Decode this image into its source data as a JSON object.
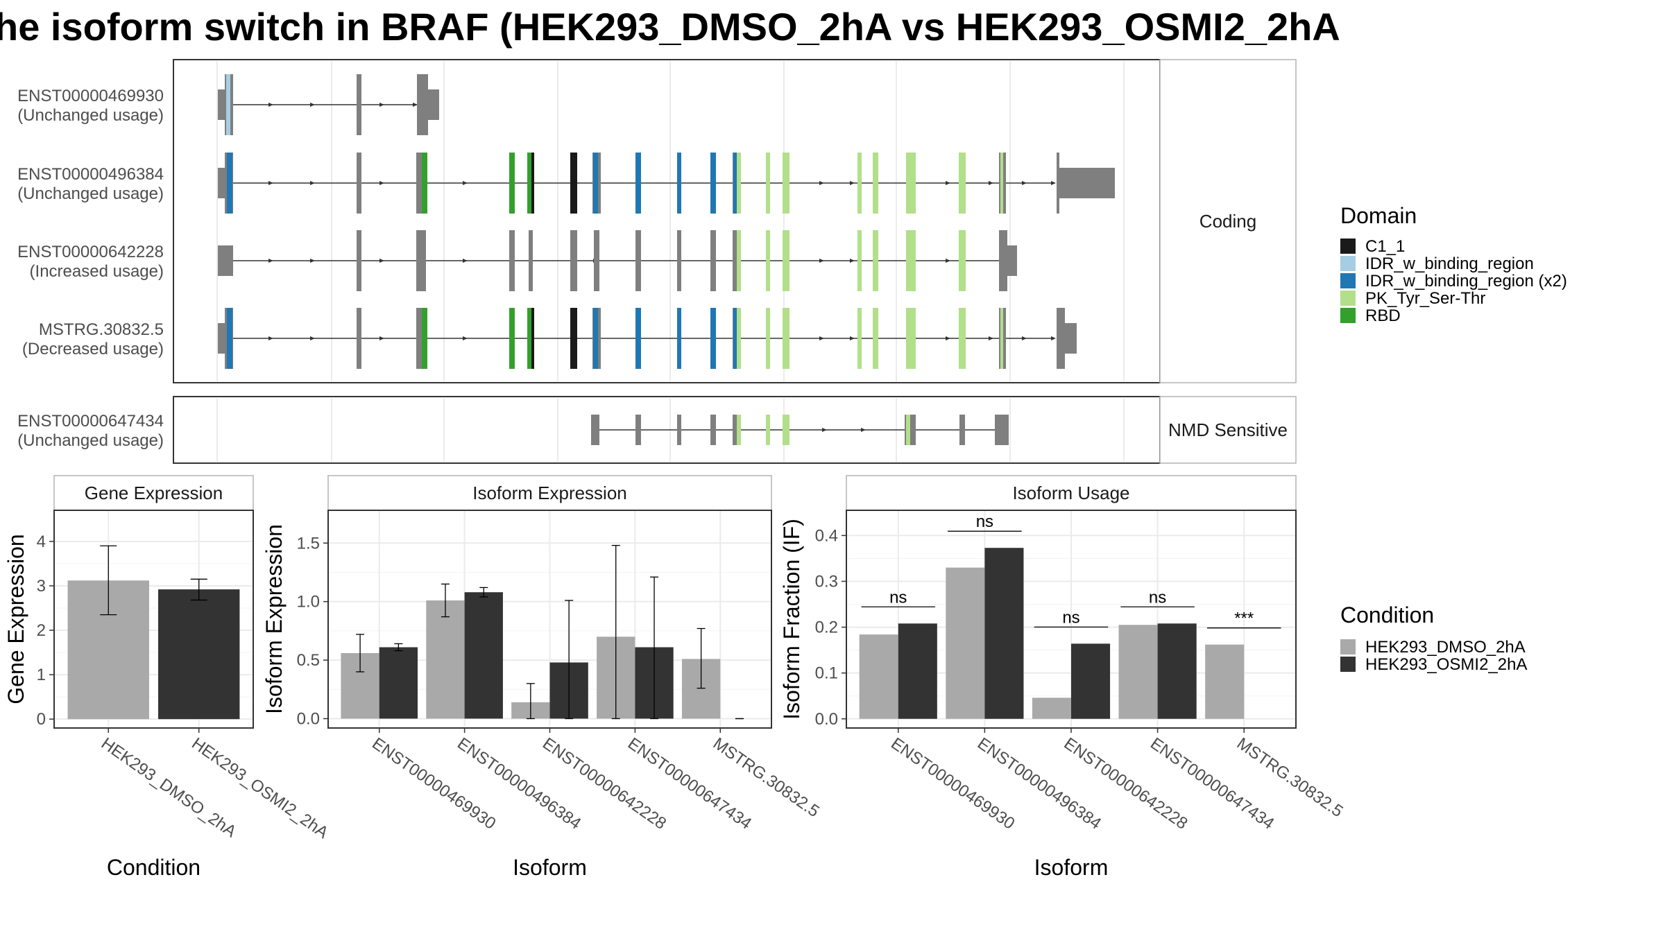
{
  "title": "he isoform switch in BRAF (HEK293_DMSO_2hA vs HEK293_OSMI2_2hA",
  "colors": {
    "C1_1": "#1a1a1a",
    "IDR_w_binding_region": "#a6cee3",
    "IDR_w_binding_region (x2)": "#1f78b4",
    "PK_Tyr_Ser-Thr": "#b2df8a",
    "RBD": "#33a02c",
    "exon": "#7f7f7f",
    "DMSO": "#a9a9a9",
    "OSMI2": "#333333"
  },
  "structure": {
    "facets": [
      "Coding",
      "NMD Sensitive"
    ],
    "transcripts": [
      {
        "id": "ENST00000469930",
        "label": "ENST00000469930",
        "usage": "(Unchanged usage)",
        "facet": "Coding"
      },
      {
        "id": "ENST00000496384",
        "label": "ENST00000496384",
        "usage": "(Unchanged usage)",
        "facet": "Coding"
      },
      {
        "id": "ENST00000642228",
        "label": "ENST00000642228",
        "usage": "(Increased usage)",
        "facet": "Coding"
      },
      {
        "id": "MSTRG.30832.5",
        "label": "MSTRG.30832.5",
        "usage": "(Decreased usage)",
        "facet": "Coding"
      },
      {
        "id": "ENST00000647434",
        "label": "ENST00000647434",
        "usage": "(Unchanged usage)",
        "facet": "NMD Sensitive"
      }
    ]
  },
  "legends": {
    "domain": {
      "title": "Domain",
      "items": [
        "C1_1",
        "IDR_w_binding_region",
        "IDR_w_binding_region (x2)",
        "PK_Tyr_Ser-Thr",
        "RBD"
      ]
    },
    "condition": {
      "title": "Condition",
      "items": [
        "HEK293_DMSO_2hA",
        "HEK293_OSMI2_2hA"
      ]
    }
  },
  "chart_data": [
    {
      "type": "bar",
      "title": "Gene Expression",
      "xlabel": "Condition",
      "ylabel": "Gene Expression",
      "categories": [
        "HEK293_DMSO_2hA",
        "HEK293_OSMI2_2hA"
      ],
      "values": [
        3.12,
        2.92
      ],
      "error_low": [
        2.35,
        2.68
      ],
      "error_high": [
        3.9,
        3.15
      ],
      "yticks": [
        "0",
        "1",
        "2",
        "3",
        "4"
      ],
      "ylim": [
        -0.2,
        4.7
      ],
      "grid": true
    },
    {
      "type": "bar",
      "title": "Isoform Expression",
      "xlabel": "Isoform",
      "ylabel": "Isoform Expression",
      "categories": [
        "ENST00000469930",
        "ENST00000496384",
        "ENST00000642228",
        "ENST00000647434",
        "MSTRG.30832.5"
      ],
      "series": [
        {
          "name": "HEK293_DMSO_2hA",
          "values": [
            0.56,
            1.01,
            0.14,
            0.7,
            0.51
          ],
          "error_low": [
            0.4,
            0.87,
            0.0,
            0.0,
            0.26
          ],
          "error_high": [
            0.72,
            1.15,
            0.3,
            1.48,
            0.77
          ]
        },
        {
          "name": "HEK293_OSMI2_2hA",
          "values": [
            0.61,
            1.08,
            0.48,
            0.61,
            0.0
          ],
          "error_low": [
            0.58,
            1.04,
            0.0,
            0.0,
            0.0
          ],
          "error_high": [
            0.64,
            1.12,
            1.01,
            1.21,
            0.0
          ]
        }
      ],
      "yticks": [
        "0.0",
        "0.5",
        "1.0",
        "1.5"
      ],
      "ylim": [
        -0.08,
        1.78
      ],
      "grid": true
    },
    {
      "type": "bar",
      "title": "Isoform Usage",
      "xlabel": "Isoform",
      "ylabel": "Isoform Fraction (IF)",
      "categories": [
        "ENST00000469930",
        "ENST00000496384",
        "ENST00000642228",
        "ENST00000647434",
        "MSTRG.30832.5"
      ],
      "series": [
        {
          "name": "HEK293_DMSO_2hA",
          "values": [
            0.184,
            0.33,
            0.046,
            0.205,
            0.162
          ]
        },
        {
          "name": "HEK293_OSMI2_2hA",
          "values": [
            0.208,
            0.373,
            0.164,
            0.208,
            0.0
          ]
        }
      ],
      "significance": [
        "ns",
        "ns",
        "ns",
        "ns",
        "***"
      ],
      "yticks": [
        "0.0",
        "0.1",
        "0.2",
        "0.3",
        "0.4"
      ],
      "ylim": [
        -0.02,
        0.455
      ],
      "grid": true
    }
  ]
}
